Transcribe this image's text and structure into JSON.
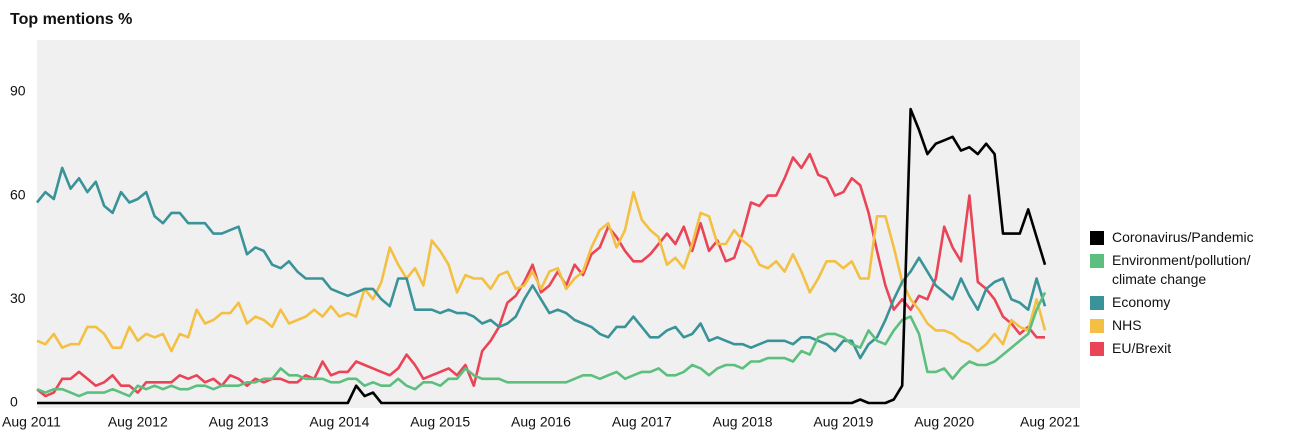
{
  "chart_data": {
    "type": "line",
    "title": "Top mentions %",
    "categories": [
      "Aug 2011",
      "Sep 2011",
      "Oct 2011",
      "Nov 2011",
      "Dec 2011",
      "Jan 2012",
      "Feb 2012",
      "Mar 2012",
      "Apr 2012",
      "May 2012",
      "Jun 2012",
      "Jul 2012",
      "Aug 2012",
      "Sep 2012",
      "Oct 2012",
      "Nov 2012",
      "Dec 2012",
      "Jan 2013",
      "Feb 2013",
      "Mar 2013",
      "Apr 2013",
      "May 2013",
      "Jun 2013",
      "Jul 2013",
      "Aug 2013",
      "Sep 2013",
      "Oct 2013",
      "Nov 2013",
      "Dec 2013",
      "Jan 2014",
      "Feb 2014",
      "Mar 2014",
      "Apr 2014",
      "May 2014",
      "Jun 2014",
      "Jul 2014",
      "Aug 2014",
      "Sep 2014",
      "Oct 2014",
      "Nov 2014",
      "Dec 2014",
      "Jan 2015",
      "Feb 2015",
      "Mar 2015",
      "Apr 2015",
      "May 2015",
      "Jun 2015",
      "Jul 2015",
      "Aug 2015",
      "Sep 2015",
      "Oct 2015",
      "Nov 2015",
      "Dec 2015",
      "Jan 2016",
      "Feb 2016",
      "Mar 2016",
      "Apr 2016",
      "May 2016",
      "Jun 2016",
      "Jul 2016",
      "Aug 2016",
      "Sep 2016",
      "Oct 2016",
      "Nov 2016",
      "Dec 2016",
      "Jan 2017",
      "Feb 2017",
      "Mar 2017",
      "Apr 2017",
      "May 2017",
      "Jun 2017",
      "Jul 2017",
      "Aug 2017",
      "Sep 2017",
      "Oct 2017",
      "Nov 2017",
      "Dec 2017",
      "Jan 2018",
      "Feb 2018",
      "Mar 2018",
      "Apr 2018",
      "May 2018",
      "Jun 2018",
      "Jul 2018",
      "Aug 2018",
      "Sep 2018",
      "Oct 2018",
      "Nov 2018",
      "Dec 2018",
      "Jan 2019",
      "Feb 2019",
      "Mar 2019",
      "Apr 2019",
      "May 2019",
      "Jun 2019",
      "Jul 2019",
      "Aug 2019",
      "Sep 2019",
      "Oct 2019",
      "Nov 2019",
      "Dec 2019",
      "Jan 2020",
      "Feb 2020",
      "Mar 2020",
      "Apr 2020",
      "May 2020",
      "Jun 2020",
      "Jul 2020",
      "Aug 2020",
      "Sep 2020",
      "Oct 2020",
      "Nov 2020",
      "Dec 2020",
      "Jan 2021",
      "Feb 2021",
      "Mar 2021",
      "Apr 2021",
      "May 2021",
      "Jun 2021",
      "Jul 2021",
      "Aug 2021"
    ],
    "xticks": [
      "Aug 2011",
      "Aug 2012",
      "Aug 2013",
      "Aug 2014",
      "Aug 2015",
      "Aug 2016",
      "Aug 2017",
      "Aug 2018",
      "Aug 2019",
      "Aug 2020",
      "Aug 2021"
    ],
    "ylim": [
      0,
      105
    ],
    "yticks": [
      0,
      30,
      60,
      90
    ],
    "grid": false,
    "legend": "right",
    "series": [
      {
        "name": "Coronavirus/Pandemic",
        "color": "#000000",
        "values": [
          0,
          0,
          0,
          0,
          0,
          0,
          0,
          0,
          0,
          0,
          0,
          0,
          0,
          0,
          0,
          0,
          0,
          0,
          0,
          0,
          0,
          0,
          0,
          0,
          0,
          0,
          0,
          0,
          0,
          0,
          0,
          0,
          0,
          0,
          0,
          0,
          0,
          0,
          5,
          2,
          3,
          0,
          0,
          0,
          0,
          0,
          0,
          0,
          0,
          0,
          0,
          0,
          0,
          0,
          0,
          0,
          0,
          0,
          0,
          0,
          0,
          0,
          0,
          0,
          0,
          0,
          0,
          0,
          0,
          0,
          0,
          0,
          0,
          0,
          0,
          0,
          0,
          0,
          0,
          0,
          0,
          0,
          0,
          0,
          0,
          0,
          0,
          0,
          0,
          0,
          0,
          0,
          0,
          0,
          0,
          0,
          0,
          0,
          1,
          0,
          0,
          0,
          1,
          5,
          85,
          79,
          72,
          75,
          76,
          77,
          73,
          74,
          72,
          75,
          72,
          49,
          49,
          49,
          56,
          48,
          40
        ]
      },
      {
        "name": "Environment/pollution/climate change",
        "color": "#5cbf7e",
        "values": [
          4,
          3,
          4,
          4,
          3,
          2,
          3,
          3,
          3,
          4,
          3,
          2,
          5,
          4,
          5,
          4,
          5,
          4,
          4,
          5,
          5,
          4,
          5,
          5,
          5,
          6,
          6,
          7,
          7,
          10,
          8,
          8,
          7,
          7,
          7,
          6,
          6,
          7,
          7,
          5,
          6,
          5,
          5,
          7,
          5,
          4,
          6,
          6,
          5,
          7,
          7,
          10,
          8,
          7,
          7,
          7,
          6,
          6,
          6,
          6,
          6,
          6,
          6,
          6,
          7,
          8,
          8,
          7,
          8,
          9,
          7,
          8,
          9,
          9,
          10,
          8,
          8,
          9,
          11,
          10,
          8,
          10,
          11,
          11,
          10,
          12,
          12,
          13,
          13,
          13,
          12,
          15,
          14,
          19,
          20,
          20,
          19,
          17,
          16,
          21,
          18,
          17,
          21,
          24,
          25,
          20,
          9,
          9,
          10,
          7,
          10,
          12,
          11,
          11,
          12,
          14,
          16,
          18,
          20,
          27,
          32
        ]
      },
      {
        "name": "Economy",
        "color": "#3a9399",
        "values": [
          58,
          61,
          59,
          68,
          62,
          65,
          61,
          64,
          57,
          55,
          61,
          58,
          59,
          61,
          54,
          52,
          55,
          55,
          52,
          52,
          52,
          49,
          49,
          50,
          51,
          43,
          45,
          44,
          40,
          39,
          41,
          38,
          36,
          36,
          36,
          33,
          32,
          31,
          32,
          33,
          33,
          30,
          28,
          36,
          36,
          27,
          27,
          27,
          26,
          27,
          26,
          26,
          25,
          23,
          24,
          22,
          23,
          25,
          30,
          34,
          30,
          26,
          27,
          26,
          24,
          23,
          22,
          20,
          19,
          22,
          22,
          25,
          22,
          19,
          19,
          21,
          22,
          19,
          20,
          23,
          18,
          19,
          18,
          17,
          17,
          16,
          17,
          18,
          18,
          18,
          17,
          19,
          19,
          18,
          17,
          15,
          18,
          18,
          13,
          17,
          19,
          24,
          30,
          35,
          38,
          42,
          38,
          34,
          32,
          30,
          36,
          31,
          27,
          33,
          35,
          36,
          30,
          29,
          27,
          36,
          28
        ]
      },
      {
        "name": "NHS",
        "color": "#f4c044",
        "values": [
          18,
          17,
          20,
          16,
          17,
          17,
          22,
          22,
          20,
          16,
          16,
          22,
          18,
          20,
          19,
          20,
          15,
          20,
          19,
          27,
          23,
          24,
          26,
          26,
          29,
          23,
          25,
          24,
          22,
          27,
          23,
          24,
          25,
          27,
          25,
          28,
          25,
          26,
          25,
          33,
          30,
          35,
          45,
          40,
          36,
          39,
          34,
          47,
          44,
          40,
          32,
          37,
          36,
          36,
          33,
          37,
          38,
          33,
          34,
          38,
          33,
          38,
          39,
          33,
          36,
          38,
          45,
          50,
          52,
          45,
          50,
          61,
          53,
          50,
          48,
          40,
          42,
          39,
          46,
          55,
          54,
          46,
          46,
          50,
          47,
          45,
          40,
          39,
          41,
          38,
          43,
          38,
          32,
          36,
          41,
          41,
          39,
          41,
          36,
          36,
          54,
          54,
          45,
          35,
          30,
          27,
          23,
          21,
          21,
          20,
          18,
          17,
          15,
          17,
          20,
          17,
          24,
          22,
          21,
          30,
          21
        ]
      },
      {
        "name": "EU/Brexit",
        "color": "#ea4457",
        "values": [
          4,
          2,
          3,
          7,
          7,
          9,
          7,
          5,
          6,
          8,
          5,
          5,
          3,
          6,
          6,
          6,
          6,
          8,
          7,
          8,
          6,
          7,
          5,
          8,
          7,
          5,
          7,
          6,
          7,
          7,
          6,
          6,
          8,
          7,
          12,
          8,
          9,
          9,
          12,
          11,
          10,
          9,
          8,
          10,
          14,
          11,
          7,
          8,
          9,
          10,
          8,
          11,
          5,
          15,
          18,
          22,
          29,
          31,
          35,
          40,
          32,
          34,
          38,
          34,
          40,
          37,
          43,
          45,
          51,
          48,
          44,
          41,
          41,
          43,
          46,
          49,
          46,
          51,
          44,
          52,
          44,
          47,
          41,
          42,
          49,
          58,
          57,
          60,
          60,
          65,
          71,
          68,
          72,
          66,
          65,
          60,
          61,
          65,
          63,
          55,
          44,
          34,
          27,
          30,
          27,
          31,
          30,
          36,
          51,
          45,
          41,
          60,
          35,
          33,
          30,
          25,
          23,
          20,
          22,
          19,
          19
        ]
      }
    ]
  }
}
